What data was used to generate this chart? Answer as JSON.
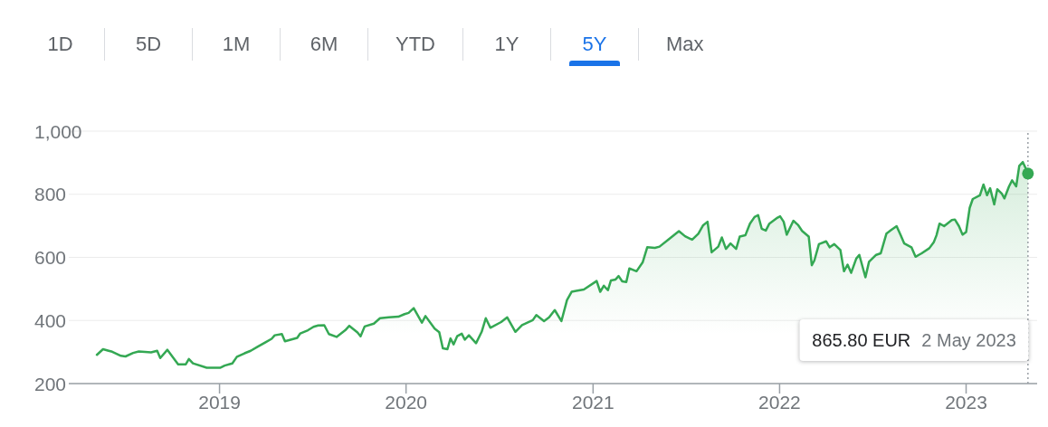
{
  "chart_data": [
    {
      "type": "other",
      "annotations": [
        "1D",
        "5D",
        "1M",
        "6M",
        "YTD",
        "1Y",
        "5Y",
        "Max"
      ]
    },
    {
      "type": "area",
      "color": "#34a853",
      "x": [
        "2018-05-06",
        "2018-05-18",
        "2018-05-29",
        "2018-06-05",
        "2018-06-22",
        "2018-07-01",
        "2018-07-16",
        "2018-07-27",
        "2018-08-20",
        "2018-09-01",
        "2018-09-07",
        "2018-09-21",
        "2018-10-12",
        "2018-10-27",
        "2018-11-02",
        "2018-11-10",
        "2018-12-07",
        "2019-01-02",
        "2019-01-11",
        "2019-01-26",
        "2019-02-04",
        "2019-02-19",
        "2019-03-03",
        "2019-03-17",
        "2019-04-01",
        "2019-04-13",
        "2019-04-19",
        "2019-05-03",
        "2019-05-09",
        "2019-06-02",
        "2019-06-08",
        "2019-06-23",
        "2019-07-04",
        "2019-07-13",
        "2019-07-25",
        "2019-08-03",
        "2019-08-18",
        "2019-09-04",
        "2019-09-12",
        "2019-09-28",
        "2019-10-04",
        "2019-10-12",
        "2019-10-30",
        "2019-11-11",
        "2019-11-28",
        "2019-12-17",
        "2019-12-29",
        "2020-01-06",
        "2020-01-16",
        "2020-02-01",
        "2020-02-08",
        "2020-02-26",
        "2020-03-06",
        "2020-03-13",
        "2020-03-22",
        "2020-03-28",
        "2020-04-03",
        "2020-04-10",
        "2020-04-19",
        "2020-04-25",
        "2020-05-03",
        "2020-05-17",
        "2020-05-28",
        "2020-06-05",
        "2020-06-14",
        "2020-07-05",
        "2020-07-17",
        "2020-08-02",
        "2020-08-15",
        "2020-09-05",
        "2020-09-12",
        "2020-09-27",
        "2020-10-07",
        "2020-10-18",
        "2020-10-31",
        "2020-11-11",
        "2020-11-20",
        "2020-11-29",
        "2020-12-14",
        "2021-01-08",
        "2021-01-15",
        "2021-01-22",
        "2021-01-30",
        "2021-02-05",
        "2021-02-14",
        "2021-02-20",
        "2021-02-27",
        "2021-03-07",
        "2021-03-13",
        "2021-03-27",
        "2021-04-08",
        "2021-04-17",
        "2021-05-02",
        "2021-05-11",
        "2021-05-28",
        "2021-06-18",
        "2021-06-30",
        "2021-07-14",
        "2021-07-26",
        "2021-08-04",
        "2021-08-13",
        "2021-08-21",
        "2021-09-03",
        "2021-09-10",
        "2021-09-18",
        "2021-09-27",
        "2021-10-08",
        "2021-10-15",
        "2021-10-26",
        "2021-11-04",
        "2021-11-13",
        "2021-11-20",
        "2021-11-27",
        "2021-12-05",
        "2021-12-12",
        "2021-12-28",
        "2022-01-02",
        "2022-01-09",
        "2022-01-15",
        "2022-01-28",
        "2022-02-06",
        "2022-02-14",
        "2022-02-27",
        "2022-03-05",
        "2022-03-10",
        "2022-03-19",
        "2022-04-02",
        "2022-04-09",
        "2022-04-18",
        "2022-04-30",
        "2022-05-07",
        "2022-05-14",
        "2022-05-21",
        "2022-05-31",
        "2022-06-06",
        "2022-06-18",
        "2022-06-25",
        "2022-07-09",
        "2022-07-18",
        "2022-07-29",
        "2022-08-06",
        "2022-08-18",
        "2022-08-26",
        "2022-09-02",
        "2022-09-16",
        "2022-09-24",
        "2022-10-06",
        "2022-10-21",
        "2022-10-30",
        "2022-11-04",
        "2022-11-10",
        "2022-11-19",
        "2022-12-04",
        "2022-12-10",
        "2022-12-18",
        "2022-12-25",
        "2023-01-01",
        "2023-01-08",
        "2023-01-14",
        "2023-01-28",
        "2023-02-04",
        "2023-02-11",
        "2023-02-17",
        "2023-02-25",
        "2023-03-03",
        "2023-03-12",
        "2023-03-17",
        "2023-03-26",
        "2023-04-01",
        "2023-04-09",
        "2023-04-15",
        "2023-04-22",
        "2023-04-28",
        "2023-05-02"
      ],
      "values": [
        291,
        309,
        304,
        301,
        288,
        286,
        297,
        302,
        299,
        304,
        281,
        307,
        261,
        261,
        278,
        264,
        250,
        250,
        257,
        264,
        285,
        296,
        304,
        317,
        331,
        342,
        353,
        357,
        334,
        345,
        359,
        369,
        380,
        384,
        385,
        357,
        348,
        369,
        383,
        362,
        350,
        381,
        390,
        407,
        410,
        412,
        420,
        424,
        439,
        393,
        414,
        374,
        363,
        312,
        309,
        343,
        324,
        350,
        358,
        339,
        353,
        328,
        364,
        407,
        377,
        395,
        410,
        364,
        385,
        401,
        417,
        398,
        410,
        433,
        398,
        465,
        491,
        494,
        498,
        525,
        491,
        510,
        496,
        527,
        530,
        541,
        524,
        522,
        565,
        556,
        584,
        632,
        630,
        634,
        656,
        683,
        667,
        656,
        675,
        701,
        713,
        616,
        634,
        663,
        627,
        644,
        627,
        666,
        670,
        707,
        728,
        734,
        691,
        685,
        707,
        726,
        730,
        713,
        672,
        716,
        703,
        684,
        666,
        575,
        590,
        642,
        651,
        632,
        642,
        623,
        556,
        577,
        551,
        596,
        608,
        537,
        586,
        608,
        613,
        675,
        685,
        699,
        670,
        644,
        632,
        602,
        613,
        629,
        649,
        670,
        707,
        699,
        718,
        720,
        699,
        672,
        680,
        757,
        785,
        797,
        831,
        797,
        819,
        768,
        816,
        802,
        787,
        825,
        844,
        825,
        890,
        902,
        881,
        865.8
      ],
      "xlim": [
        "2018-03-12",
        "2023-05-20"
      ],
      "xticks": [
        "2019",
        "2020",
        "2021",
        "2022",
        "2023"
      ],
      "ylim": [
        200,
        1000
      ],
      "yticks": [
        200,
        400,
        600,
        800,
        {
          "value": 1000,
          "label": "1,000"
        }
      ],
      "grid": "y",
      "ref_lines": [
        {
          "axis": "x",
          "value": "2023-05-02",
          "line_style": "dotted",
          "color": "#9aa0a6"
        }
      ],
      "annotations": [
        "865.80 EUR",
        "2 May 2023"
      ]
    }
  ]
}
